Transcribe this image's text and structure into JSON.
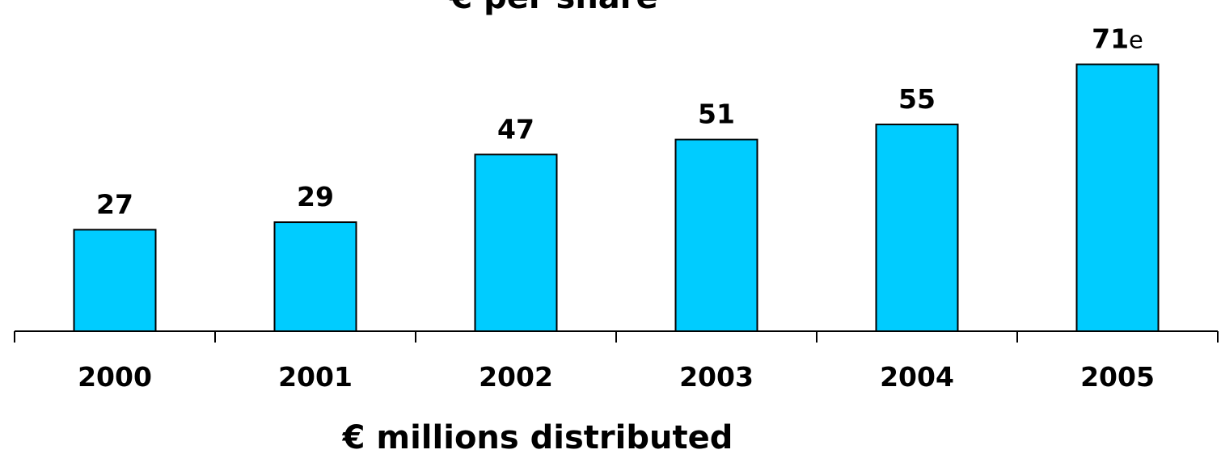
{
  "chart_data": {
    "type": "bar",
    "title": "€ per share",
    "xlabel": "€ millions distributed",
    "ylabel": "",
    "categories": [
      "2000",
      "2001",
      "2002",
      "2003",
      "2004",
      "2005"
    ],
    "values": [
      27,
      29,
      47,
      51,
      55,
      71
    ],
    "value_labels": [
      "27",
      "29",
      "47",
      "51",
      "55",
      "71"
    ],
    "value_suffixes": [
      "",
      "",
      "",
      "",
      "",
      "e"
    ],
    "ylim": [
      0,
      75
    ],
    "grid": false,
    "legend": "none",
    "colors": {
      "bar_fill": "#00ccff",
      "bar_stroke": "#000000"
    }
  }
}
